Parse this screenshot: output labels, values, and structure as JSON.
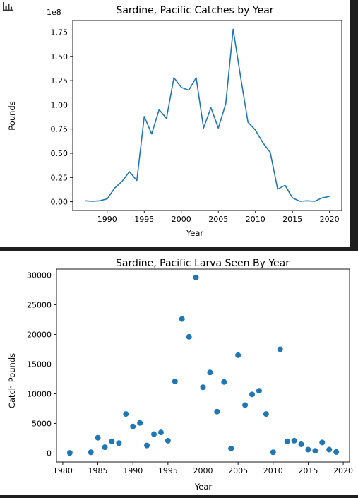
{
  "toolbar": {
    "icon": "bar-chart-icon"
  },
  "chart_data": [
    {
      "type": "line",
      "title": "Sardine, Pacific Catches by Year",
      "xlabel": "Year",
      "ylabel": "Pounds",
      "offset_label": "1e8",
      "color": "#1f77b4",
      "xlim": [
        1985.35,
        2021.65
      ],
      "ylim": [
        -0.09,
        1.87
      ],
      "xticks": [
        1990,
        1995,
        2000,
        2005,
        2010,
        2015,
        2020
      ],
      "xtick_labels": [
        "1990",
        "1995",
        "2000",
        "2005",
        "2010",
        "2015",
        "2020"
      ],
      "yticks": [
        0.0,
        0.25,
        0.5,
        0.75,
        1.0,
        1.25,
        1.5,
        1.75
      ],
      "ytick_labels": [
        "0.00",
        "0.25",
        "0.50",
        "0.75",
        "1.00",
        "1.25",
        "1.50",
        "1.75"
      ],
      "x": [
        1987,
        1988,
        1989,
        1990,
        1991,
        1992,
        1993,
        1994,
        1995,
        1996,
        1997,
        1998,
        1999,
        2000,
        2001,
        2002,
        2003,
        2004,
        2005,
        2006,
        2007,
        2008,
        2009,
        2010,
        2011,
        2012,
        2013,
        2014,
        2015,
        2016,
        2017,
        2018,
        2019,
        2020
      ],
      "y": [
        0.01,
        0.005,
        0.01,
        0.03,
        0.14,
        0.21,
        0.31,
        0.22,
        0.88,
        0.7,
        0.95,
        0.86,
        1.28,
        1.18,
        1.15,
        1.28,
        0.76,
        0.97,
        0.76,
        1.01,
        1.78,
        1.29,
        0.82,
        0.74,
        0.61,
        0.51,
        0.13,
        0.17,
        0.04,
        0.005,
        0.01,
        0.005,
        0.04,
        0.055
      ],
      "grid": false
    },
    {
      "type": "scatter",
      "title": "Sardine, Pacific Larva Seen By Year",
      "xlabel": "Year",
      "ylabel": "Catch Pounds",
      "color": "#1f77b4",
      "xlim": [
        1979.1,
        2020.9
      ],
      "ylim": [
        -1480,
        31000
      ],
      "xticks": [
        1980,
        1985,
        1990,
        1995,
        2000,
        2005,
        2010,
        2015,
        2020
      ],
      "xtick_labels": [
        "1980",
        "1985",
        "1990",
        "1995",
        "2000",
        "2005",
        "2010",
        "2015",
        "2020"
      ],
      "yticks": [
        0,
        5000,
        10000,
        15000,
        20000,
        25000,
        30000
      ],
      "ytick_labels": [
        "0",
        "5000",
        "10000",
        "15000",
        "20000",
        "25000",
        "30000"
      ],
      "x": [
        1981,
        1984,
        1985,
        1986,
        1987,
        1988,
        1989,
        1990,
        1991,
        1992,
        1993,
        1994,
        1995,
        1996,
        1997,
        1998,
        1999,
        2000,
        2001,
        2002,
        2003,
        2004,
        2005,
        2006,
        2007,
        2008,
        2009,
        2010,
        2011,
        2012,
        2013,
        2014,
        2015,
        2016,
        2017,
        2018,
        2019
      ],
      "y": [
        50,
        150,
        2600,
        1000,
        2000,
        1700,
        6600,
        4500,
        5100,
        1300,
        3200,
        3500,
        2100,
        12100,
        22600,
        19600,
        29600,
        11100,
        13600,
        7000,
        12000,
        800,
        16500,
        8100,
        9900,
        10500,
        6600,
        150,
        17500,
        2000,
        2100,
        1500,
        600,
        400,
        1800,
        600,
        200
      ],
      "grid": false
    }
  ]
}
